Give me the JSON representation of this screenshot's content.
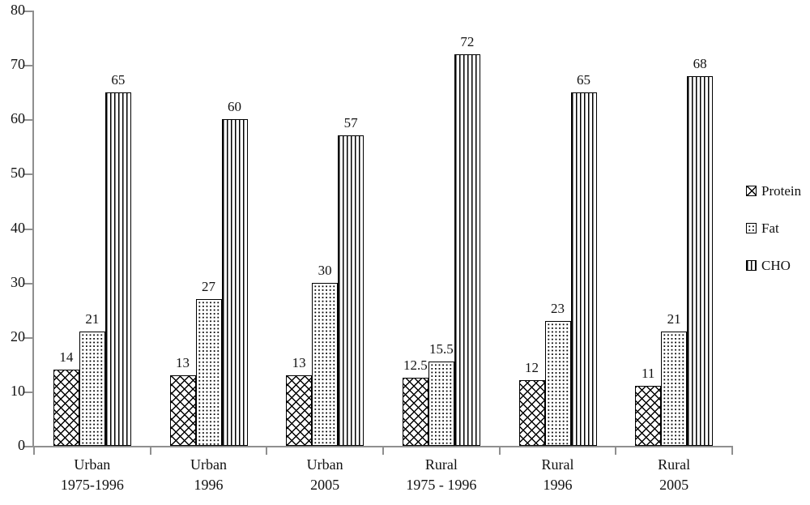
{
  "chart_data": {
    "type": "bar",
    "title": "",
    "xlabel": "",
    "ylabel": "",
    "ylim": [
      0,
      80
    ],
    "yticks": [
      "0",
      "10",
      "20",
      "30",
      "40",
      "50",
      "60",
      "70",
      "80"
    ],
    "grid": false,
    "legend_position": "right",
    "categories": [
      {
        "line1": "Urban",
        "line2": "1975-1996"
      },
      {
        "line1": "Urban",
        "line2": "1996"
      },
      {
        "line1": "Urban",
        "line2": "2005"
      },
      {
        "line1": "Rural",
        "line2": "1975 - 1996"
      },
      {
        "line1": "Rural",
        "line2": "1996"
      },
      {
        "line1": "Rural",
        "line2": "2005"
      }
    ],
    "series": [
      {
        "name": "Protein",
        "pattern": "crosshatch",
        "values": [
          14,
          13,
          13,
          12.5,
          12,
          11
        ],
        "labels": [
          "14",
          "13",
          "13",
          "12.5",
          "12",
          "11"
        ]
      },
      {
        "name": "Fat",
        "pattern": "dots",
        "values": [
          21,
          27,
          30,
          15.5,
          23,
          21
        ],
        "labels": [
          "21",
          "27",
          "30",
          "15.5",
          "23",
          "21"
        ]
      },
      {
        "name": "CHO",
        "pattern": "vstripes",
        "values": [
          65,
          60,
          57,
          72,
          65,
          68
        ],
        "labels": [
          "65",
          "60",
          "57",
          "72",
          "65",
          "68"
        ]
      }
    ],
    "colors": {
      "bar_fill": "#ffffff",
      "pattern_ink": "#000000",
      "axis": "#8f8f8f",
      "text": "#111111",
      "background": "#ffffff"
    }
  }
}
